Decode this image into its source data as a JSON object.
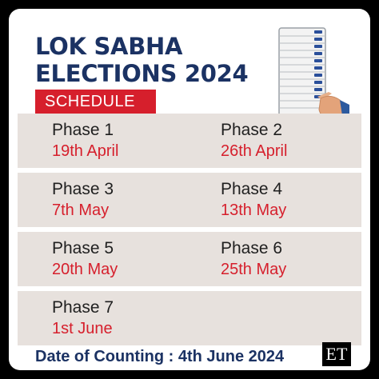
{
  "header": {
    "title_line1": "LOK SABHA",
    "title_line2": "ELECTIONS 2024",
    "badge": "SCHEDULE"
  },
  "phases": [
    {
      "label": "Phase 1",
      "date": "19th April"
    },
    {
      "label": "Phase 2",
      "date": "26th April"
    },
    {
      "label": "Phase 3",
      "date": "7th May"
    },
    {
      "label": "Phase 4",
      "date": "13th May"
    },
    {
      "label": "Phase 5",
      "date": "20th May"
    },
    {
      "label": "Phase 6",
      "date": "25th May"
    },
    {
      "label": "Phase 7",
      "date": "1st June"
    }
  ],
  "footer": {
    "counting": "Date of Counting : 4th June 2024"
  },
  "logo": {
    "text": "ET"
  },
  "colors": {
    "navy": "#1b3263",
    "red": "#d61f2c",
    "row_bg": "#e7e1dd",
    "frame": "#000000"
  },
  "icons": [
    "voting-machine-icon",
    "pointing-hand-icon"
  ]
}
